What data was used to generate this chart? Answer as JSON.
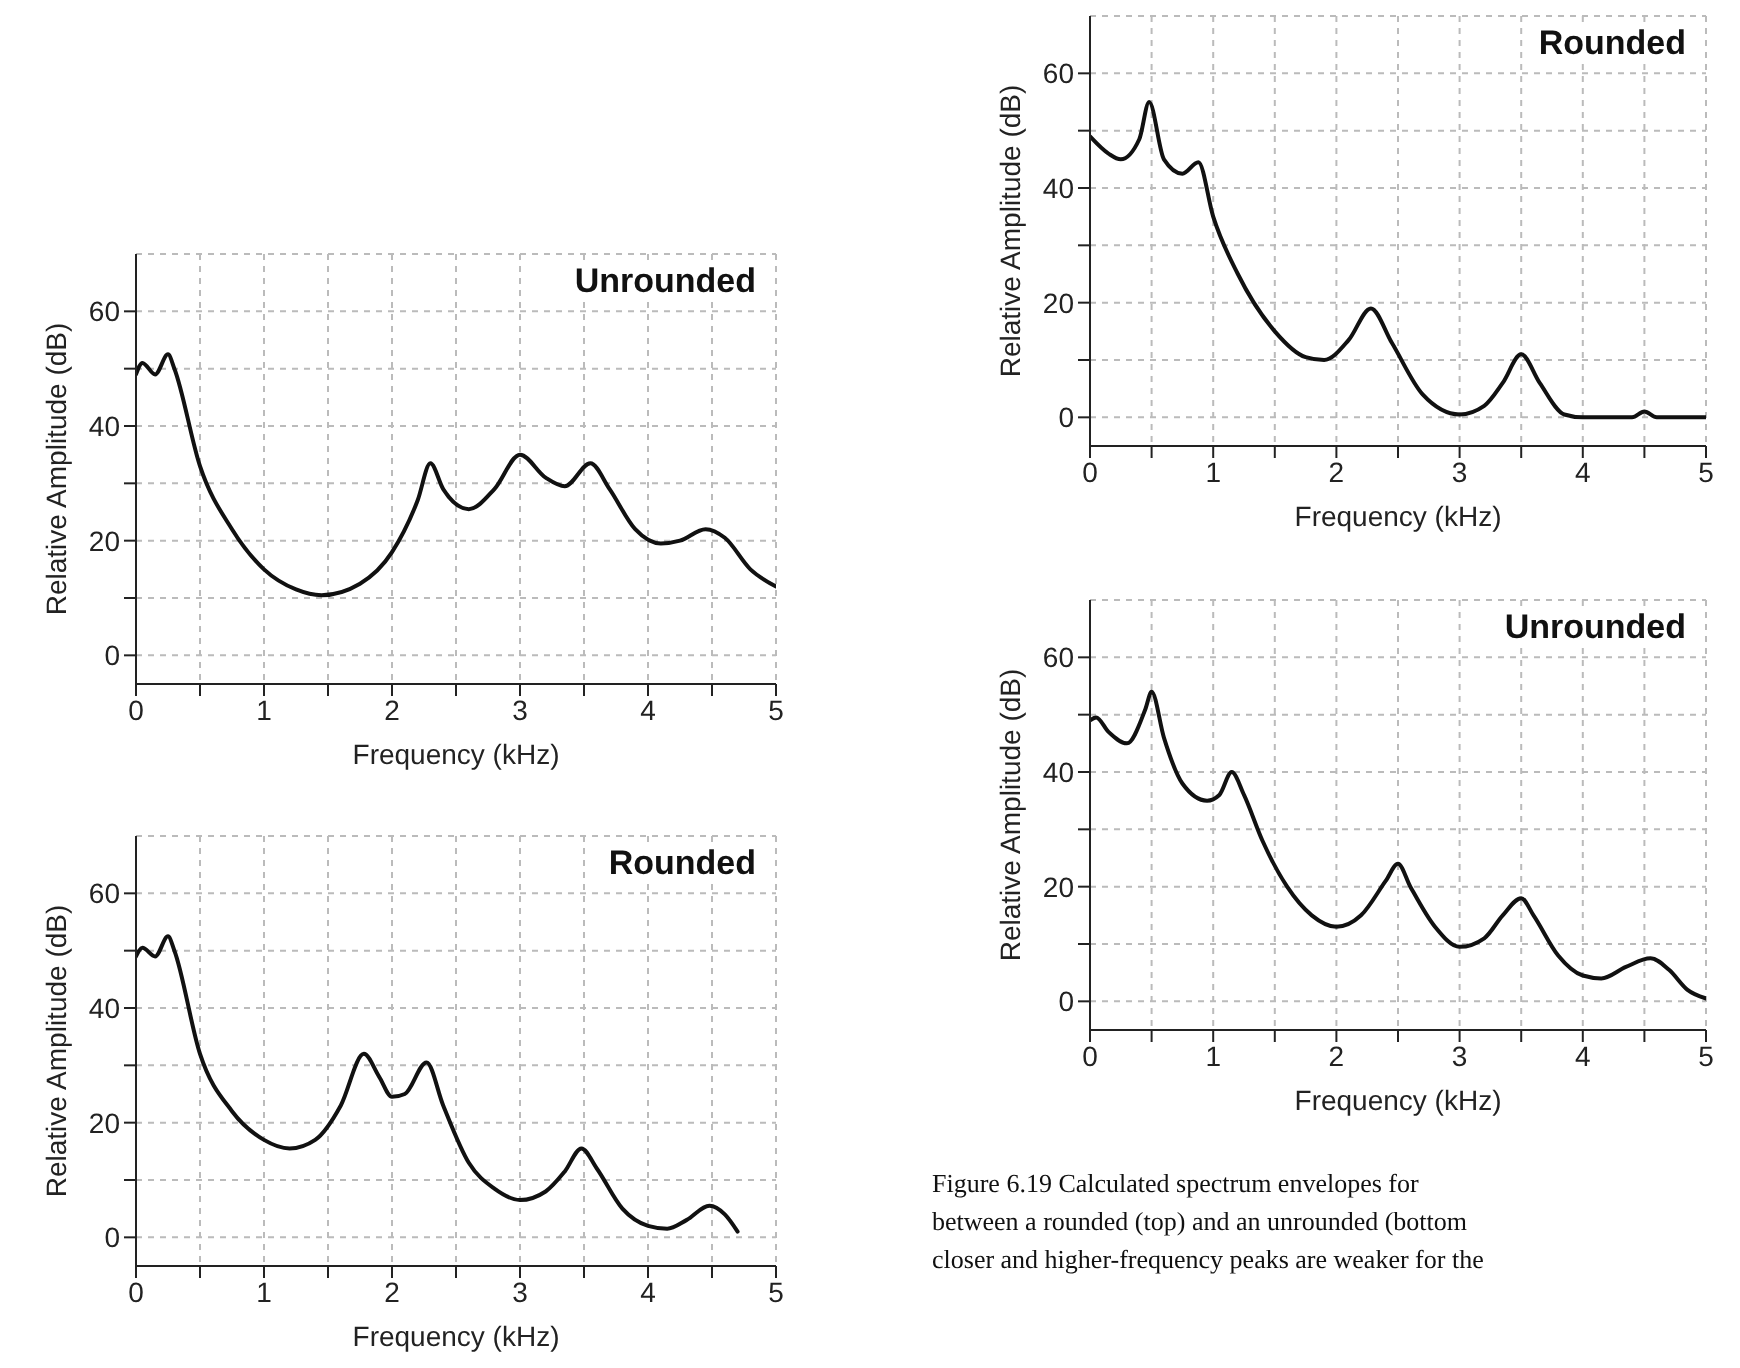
{
  "chart_data": [
    {
      "type": "line",
      "title": "Unrounded",
      "xlabel": "Frequency (kHz)",
      "ylabel": "Relative Amplitude (dB)",
      "xlim": [
        0,
        5
      ],
      "ylim": [
        -5,
        70
      ],
      "xticks": [
        0,
        {
          "value": 0.5,
          "label": null
        },
        1,
        {
          "value": 1.5,
          "label": null
        },
        2,
        {
          "value": 2.5,
          "label": null
        },
        3,
        {
          "value": 3.5,
          "label": null
        },
        4,
        {
          "value": 4.5,
          "label": null
        },
        5
      ],
      "yticks": [
        0,
        {
          "value": 10,
          "label": null
        },
        20,
        {
          "value": 30,
          "label": null
        },
        40,
        {
          "value": 50,
          "label": null
        },
        60
      ],
      "grid": true,
      "legend": false,
      "marker": "none",
      "line_style": "solid",
      "series": [
        {
          "color": "#111111",
          "x": [
            0,
            0.05,
            0.15,
            0.25,
            0.3,
            0.5,
            0.75,
            1.0,
            1.25,
            1.45,
            1.75,
            2.0,
            2.2,
            2.3,
            2.4,
            2.6,
            2.8,
            3.0,
            3.2,
            3.35,
            3.55,
            3.7,
            3.9,
            4.1,
            4.25,
            4.45,
            4.6,
            4.8,
            5.0
          ],
          "values": [
            49,
            51,
            49,
            52.5,
            50,
            33,
            22,
            15,
            11.5,
            10.5,
            12.5,
            18,
            27,
            33.5,
            29,
            25.5,
            29,
            35,
            31,
            29.5,
            33.5,
            29,
            22,
            19.5,
            20,
            22,
            20.5,
            15,
            12
          ]
        }
      ]
    },
    {
      "type": "line",
      "title": "Rounded",
      "xlabel": "Frequency (kHz)",
      "ylabel": "Relative Amplitude (dB)",
      "xlim": [
        0,
        5
      ],
      "ylim": [
        -5,
        70
      ],
      "xticks": [
        0,
        {
          "value": 0.5,
          "label": null
        },
        1,
        {
          "value": 1.5,
          "label": null
        },
        2,
        {
          "value": 2.5,
          "label": null
        },
        3,
        {
          "value": 3.5,
          "label": null
        },
        4,
        {
          "value": 4.5,
          "label": null
        },
        5
      ],
      "yticks": [
        0,
        {
          "value": 10,
          "label": null
        },
        20,
        {
          "value": 30,
          "label": null
        },
        40,
        {
          "value": 50,
          "label": null
        },
        60
      ],
      "grid": true,
      "legend": false,
      "marker": "none",
      "line_style": "solid",
      "series": [
        {
          "color": "#111111",
          "x": [
            0,
            0.05,
            0.15,
            0.25,
            0.3,
            0.5,
            0.75,
            1.0,
            1.2,
            1.4,
            1.6,
            1.78,
            1.9,
            2.0,
            2.1,
            2.27,
            2.4,
            2.6,
            2.8,
            3.0,
            3.2,
            3.35,
            3.48,
            3.6,
            3.8,
            4.0,
            4.15,
            4.3,
            4.48,
            4.6,
            4.7
          ],
          "values": [
            49,
            50.5,
            49,
            52.5,
            50,
            32,
            22,
            17,
            15.5,
            17,
            23,
            32,
            28,
            24.5,
            25,
            30.5,
            23,
            13,
            8.5,
            6.5,
            8,
            11.5,
            15.5,
            12,
            5,
            2,
            1.5,
            3,
            5.5,
            4,
            1
          ]
        }
      ]
    },
    {
      "type": "line",
      "title": "Rounded",
      "xlabel": "Frequency (kHz)",
      "ylabel": "Relative Amplitude (dB)",
      "xlim": [
        0,
        5
      ],
      "ylim": [
        -5,
        70
      ],
      "xticks": [
        0,
        {
          "value": 0.5,
          "label": null
        },
        1,
        {
          "value": 1.5,
          "label": null
        },
        2,
        {
          "value": 2.5,
          "label": null
        },
        3,
        {
          "value": 3.5,
          "label": null
        },
        4,
        {
          "value": 4.5,
          "label": null
        },
        5
      ],
      "yticks": [
        0,
        {
          "value": 10,
          "label": null
        },
        20,
        {
          "value": 30,
          "label": null
        },
        40,
        {
          "value": 50,
          "label": null
        },
        60
      ],
      "grid": true,
      "legend": false,
      "marker": "none",
      "line_style": "solid",
      "series": [
        {
          "color": "#111111",
          "x": [
            0,
            0.15,
            0.25,
            0.4,
            0.48,
            0.6,
            0.75,
            0.88,
            1.0,
            1.2,
            1.5,
            1.75,
            1.9,
            2.1,
            2.28,
            2.45,
            2.7,
            3.0,
            3.2,
            3.35,
            3.5,
            3.65,
            3.85,
            4.0,
            4.2,
            4.4,
            4.5,
            4.6,
            5.0
          ],
          "values": [
            49,
            46,
            45,
            48.5,
            55,
            45,
            42.5,
            44.5,
            35,
            25,
            15,
            10.5,
            10,
            13.5,
            19,
            13,
            4,
            0.5,
            2,
            6,
            11,
            6,
            0.5,
            0,
            0,
            0,
            1,
            0,
            0
          ]
        }
      ]
    },
    {
      "type": "line",
      "title": "Unrounded",
      "xlabel": "Frequency (kHz)",
      "ylabel": "Relative Amplitude (dB)",
      "xlim": [
        0,
        5
      ],
      "ylim": [
        -5,
        70
      ],
      "xticks": [
        0,
        {
          "value": 0.5,
          "label": null
        },
        1,
        {
          "value": 1.5,
          "label": null
        },
        2,
        {
          "value": 2.5,
          "label": null
        },
        3,
        {
          "value": 3.5,
          "label": null
        },
        4,
        {
          "value": 4.5,
          "label": null
        },
        5
      ],
      "yticks": [
        0,
        {
          "value": 10,
          "label": null
        },
        20,
        {
          "value": 30,
          "label": null
        },
        40,
        {
          "value": 50,
          "label": null
        },
        60
      ],
      "grid": true,
      "legend": false,
      "marker": "none",
      "line_style": "solid",
      "annotations": [
        "Figure 6.19  Calculated spectrum envelopes for",
        "between a rounded (top) and an unrounded (bottom",
        "closer and higher-frequency peaks are weaker for the"
      ],
      "series": [
        {
          "color": "#111111",
          "x": [
            0,
            0.05,
            0.15,
            0.3,
            0.45,
            0.5,
            0.6,
            0.75,
            0.95,
            1.05,
            1.15,
            1.25,
            1.4,
            1.6,
            1.8,
            2.0,
            2.2,
            2.4,
            2.5,
            2.6,
            2.8,
            3.0,
            3.2,
            3.35,
            3.5,
            3.6,
            3.8,
            4.0,
            4.15,
            4.35,
            4.55,
            4.7,
            4.85,
            5.0
          ],
          "values": [
            49,
            49.5,
            47,
            45,
            51,
            54,
            46,
            38,
            35,
            36,
            40,
            36,
            28,
            20,
            15,
            13,
            15,
            21,
            24,
            20,
            13,
            9.5,
            11,
            15,
            18,
            15,
            8,
            4.5,
            4,
            6,
            7.5,
            5.5,
            2,
            0.5
          ]
        }
      ]
    }
  ]
}
